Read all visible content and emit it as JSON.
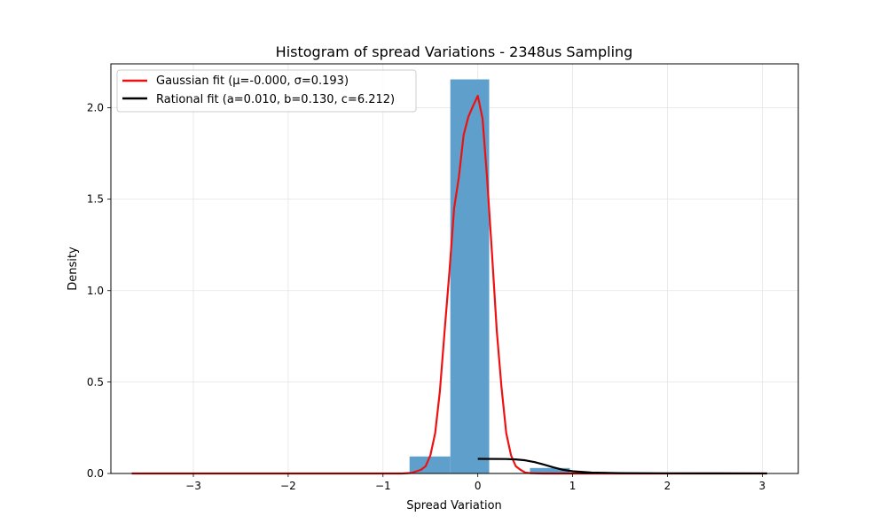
{
  "chart_data": {
    "type": "histogram",
    "title": "Histogram of spread Variations - 2348us Sampling",
    "xlabel": "Spread Variation",
    "ylabel": "Density",
    "xlim": [
      -3.87,
      3.38
    ],
    "ylim": [
      0,
      2.24
    ],
    "xticks": [
      -3,
      -2,
      -1,
      0,
      1,
      2,
      3
    ],
    "xtick_labels": [
      "−3",
      "−2",
      "−1",
      "0",
      "1",
      "2",
      "3"
    ],
    "yticks": [
      0.0,
      0.5,
      1.0,
      1.5,
      2.0
    ],
    "ytick_labels": [
      "0.0",
      "0.5",
      "1.0",
      "1.5",
      "2.0"
    ],
    "grid": true,
    "legend_position": "top-left",
    "bar_color": "#5f9fcb",
    "bins": [
      {
        "x0": -3.69,
        "x1": -3.26,
        "value": 0.002
      },
      {
        "x0": -3.26,
        "x1": -2.84,
        "value": 0.002
      },
      {
        "x0": -2.84,
        "x1": -2.41,
        "value": 0.002
      },
      {
        "x0": -2.41,
        "x1": -1.99,
        "value": 0.002
      },
      {
        "x0": -1.99,
        "x1": -1.56,
        "value": 0.002
      },
      {
        "x0": -1.56,
        "x1": -1.14,
        "value": 0.002
      },
      {
        "x0": -1.14,
        "x1": -0.72,
        "value": 0.003
      },
      {
        "x0": -0.72,
        "x1": -0.29,
        "value": 0.093
      },
      {
        "x0": -0.29,
        "x1": 0.12,
        "value": 2.155
      },
      {
        "x0": 0.12,
        "x1": 0.55,
        "value": 0.003
      },
      {
        "x0": 0.55,
        "x1": 0.97,
        "value": 0.03
      },
      {
        "x0": 0.97,
        "x1": 1.4,
        "value": 0.002
      },
      {
        "x0": 1.4,
        "x1": 1.82,
        "value": 0.002
      },
      {
        "x0": 1.82,
        "x1": 2.25,
        "value": 0.002
      },
      {
        "x0": 2.25,
        "x1": 2.67,
        "value": 0.002
      },
      {
        "x0": 2.67,
        "x1": 3.1,
        "value": 0.002
      }
    ],
    "series": [
      {
        "name": "Gaussian fit (μ=-0.000, σ=0.193)",
        "color": "#ee1111",
        "type": "line",
        "x": [
          -3.65,
          -1.2,
          -0.8,
          -0.7,
          -0.6,
          -0.55,
          -0.5,
          -0.45,
          -0.4,
          -0.35,
          -0.3,
          -0.25,
          -0.2,
          -0.15,
          -0.1,
          -0.05,
          0.0,
          0.05,
          0.1,
          0.15,
          0.2,
          0.25,
          0.3,
          0.35,
          0.4,
          0.45,
          0.5,
          0.55,
          0.6,
          0.7,
          0.8,
          1.2,
          3.05
        ],
        "y": [
          0.0,
          0.0,
          0.0,
          0.003,
          0.02,
          0.04,
          0.1,
          0.22,
          0.45,
          0.78,
          1.1,
          1.45,
          1.62,
          1.85,
          1.95,
          2.01,
          2.065,
          1.94,
          1.6,
          1.2,
          0.78,
          0.47,
          0.22,
          0.1,
          0.04,
          0.02,
          0.005,
          0.002,
          0.001,
          0.0,
          0.0,
          0.0,
          0.0
        ]
      },
      {
        "name": "Rational fit (a=0.010, b=0.130, c=6.212)",
        "color": "#000000",
        "type": "line",
        "x": [
          0.0,
          0.3,
          0.4,
          0.5,
          0.6,
          0.7,
          0.8,
          0.9,
          1.0,
          1.2,
          1.5,
          2.0,
          2.5,
          3.05
        ],
        "y": [
          0.08,
          0.079,
          0.077,
          0.072,
          0.062,
          0.048,
          0.033,
          0.02,
          0.012,
          0.005,
          0.002,
          0.001,
          0.0005,
          0.0003
        ]
      }
    ]
  }
}
